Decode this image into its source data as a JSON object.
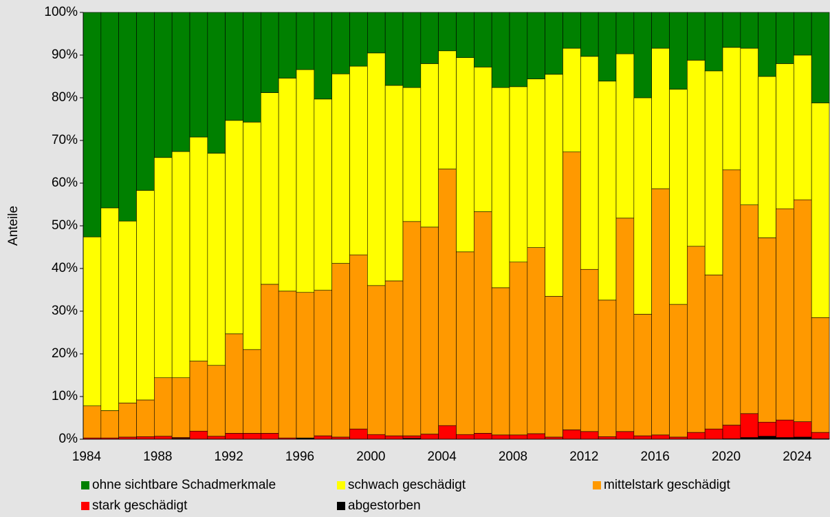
{
  "chart_data": {
    "type": "stacked_bar",
    "y_label": "Anteile",
    "categories": [
      "1984",
      null,
      null,
      null,
      "1988",
      null,
      null,
      null,
      "1992",
      null,
      null,
      null,
      "1996",
      null,
      null,
      null,
      "2000",
      null,
      null,
      null,
      "2004",
      null,
      null,
      null,
      "2008",
      null,
      null,
      null,
      "2012",
      null,
      null,
      null,
      "2016",
      null,
      null,
      null,
      "2020",
      null,
      null,
      null,
      "2024",
      null
    ],
    "ylim": [
      0,
      100
    ],
    "yticks": [
      {
        "value": 0,
        "label": "0%"
      },
      {
        "value": 10,
        "label": "10%"
      },
      {
        "value": 20,
        "label": "20%"
      },
      {
        "value": 30,
        "label": "30%"
      },
      {
        "value": 40,
        "label": "40%"
      },
      {
        "value": 50,
        "label": "50%"
      },
      {
        "value": 60,
        "label": "60%"
      },
      {
        "value": 70,
        "label": "70%"
      },
      {
        "value": 80,
        "label": "80%"
      },
      {
        "value": 90,
        "label": "90%"
      },
      {
        "value": 100,
        "label": "100%"
      }
    ],
    "series": [
      {
        "name": "ohne sichtbare Schadmerkmale",
        "color": "#008000",
        "values": [
          52.6,
          45.8,
          48.9,
          41.7,
          34.0,
          32.6,
          29.2,
          33.0,
          25.3,
          25.7,
          18.8,
          15.4,
          13.4,
          20.3,
          14.4,
          12.6,
          9.5,
          17.1,
          17.6,
          12.0,
          9.0,
          10.6,
          12.8,
          17.6,
          17.4,
          15.6,
          14.5,
          8.4,
          10.3,
          16.1,
          9.7,
          20.0,
          8.4,
          18.0,
          11.2,
          13.7,
          8.2,
          8.4,
          15.0,
          12.0,
          10.0,
          21.2
        ]
      },
      {
        "name": "schwach geschädigt",
        "color": "#ffff00",
        "values": [
          39.6,
          47.5,
          42.6,
          49.1,
          51.6,
          53.0,
          52.5,
          49.7,
          50.0,
          53.3,
          44.9,
          49.9,
          52.2,
          44.8,
          44.4,
          44.2,
          54.5,
          45.8,
          31.4,
          38.3,
          27.7,
          45.5,
          33.9,
          46.9,
          41.1,
          39.5,
          52.0,
          24.3,
          49.9,
          51.3,
          38.5,
          50.7,
          32.9,
          50.4,
          43.6,
          47.8,
          28.7,
          36.7,
          37.8,
          34.0,
          33.9,
          50.3
        ]
      },
      {
        "name": "mittelstark geschädigt",
        "color": "#ff9900",
        "values": [
          7.5,
          6.4,
          8.0,
          8.6,
          13.7,
          14.0,
          16.4,
          16.6,
          23.3,
          19.6,
          34.9,
          34.4,
          34.1,
          34.1,
          40.7,
          40.8,
          34.9,
          36.3,
          50.2,
          48.5,
          60.1,
          42.8,
          51.9,
          34.5,
          40.5,
          43.6,
          33.0,
          65.1,
          38.0,
          32.0,
          50.0,
          28.5,
          57.7,
          31.1,
          43.6,
          36.1,
          59.8,
          48.9,
          43.2,
          49.5,
          52.0,
          26.9
        ]
      },
      {
        "name": "stark geschädigt",
        "color": "#ff0000",
        "values": [
          0.3,
          0.3,
          0.5,
          0.6,
          0.7,
          0.2,
          1.9,
          0.7,
          1.4,
          1.4,
          1.4,
          0.3,
          0.1,
          0.8,
          0.5,
          2.4,
          1.1,
          0.8,
          0.6,
          1.2,
          3.2,
          1.1,
          1.4,
          1.0,
          1.0,
          1.3,
          0.5,
          2.2,
          1.8,
          0.6,
          1.8,
          0.8,
          1.0,
          0.5,
          1.6,
          2.4,
          3.2,
          5.6,
          3.3,
          4.1,
          3.6,
          1.5
        ]
      },
      {
        "name": "abgestorben",
        "color": "#000000",
        "values": [
          0,
          0,
          0,
          0,
          0,
          0.2,
          0,
          0,
          0,
          0,
          0,
          0,
          0.2,
          0,
          0,
          0,
          0,
          0,
          0.2,
          0,
          0,
          0,
          0,
          0,
          0,
          0,
          0,
          0,
          0,
          0,
          0,
          0,
          0,
          0,
          0,
          0,
          0.1,
          0.4,
          0.7,
          0.4,
          0.5,
          0.1
        ]
      }
    ]
  }
}
